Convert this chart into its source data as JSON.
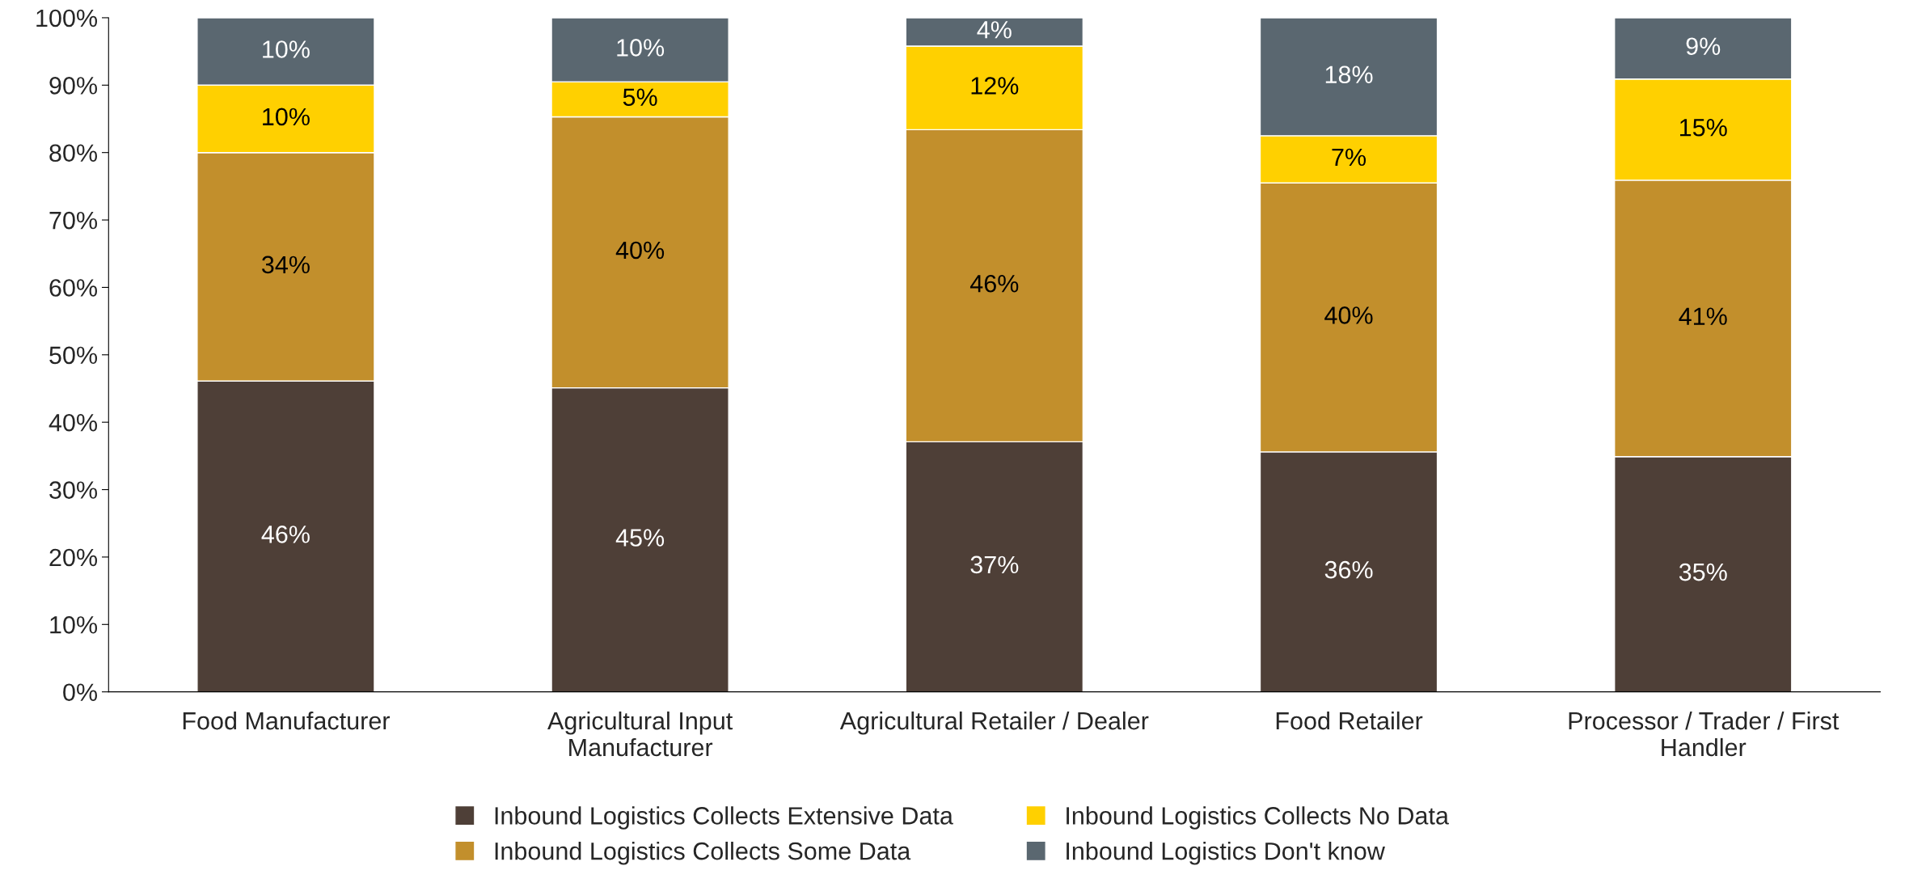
{
  "chart_data": {
    "type": "bar",
    "stacked": true,
    "categories": [
      "Food Manufacturer",
      "Agricultural Input Manufacturer",
      "Agricultural Retailer / Dealer",
      "Food Retailer",
      "Processor / Trader / First Handler"
    ],
    "series": [
      {
        "name": "Inbound Logistics Collects Extensive Data",
        "color": "#4e3f37",
        "values": [
          46.1,
          45.1,
          37.1,
          35.6,
          34.9
        ],
        "value_labels": [
          "46%",
          "45%",
          "37%",
          "36%",
          "35%"
        ]
      },
      {
        "name": "Inbound Logistics Collects Some Data",
        "color": "#c28f2c",
        "values": [
          33.9,
          40.2,
          46.3,
          39.9,
          41.0
        ],
        "value_labels": [
          "34%",
          "40%",
          "46%",
          "40%",
          "41%"
        ]
      },
      {
        "name": "Inbound Logistics Collects No Data",
        "color": "#ffd000",
        "values": [
          10.0,
          5.2,
          12.4,
          7.0,
          15.0
        ],
        "value_labels": [
          "10%",
          "5%",
          "12%",
          "7%",
          "15%"
        ]
      },
      {
        "name": "Inbound Logistics Don't know",
        "color": "#5a6770",
        "values": [
          10.0,
          9.5,
          4.2,
          17.5,
          9.1
        ],
        "value_labels": [
          "10%",
          "10%",
          "4%",
          "18%",
          "9%"
        ]
      }
    ],
    "ylim": [
      0,
      100
    ],
    "yticks": [
      {
        "value": 0,
        "label": "0%"
      },
      {
        "value": 10,
        "label": "10%"
      },
      {
        "value": 20,
        "label": "20%"
      },
      {
        "value": 30,
        "label": "30%"
      },
      {
        "value": 40,
        "label": "40%"
      },
      {
        "value": 50,
        "label": "50%"
      },
      {
        "value": 60,
        "label": "60%"
      },
      {
        "value": 70,
        "label": "70%"
      },
      {
        "value": 80,
        "label": "80%"
      },
      {
        "value": 90,
        "label": "90%"
      },
      {
        "value": 100,
        "label": "100%"
      }
    ],
    "grid": false,
    "legend": "bottom"
  }
}
